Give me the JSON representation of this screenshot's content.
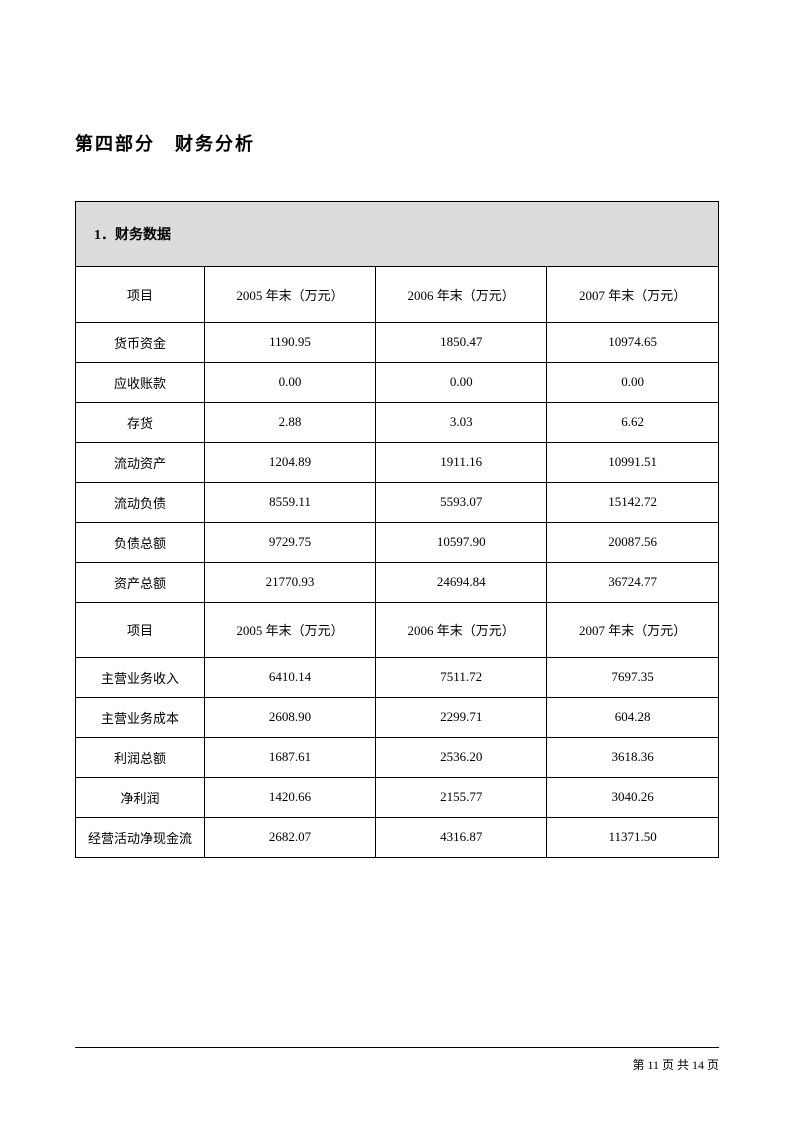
{
  "section_title": "第四部分　财务分析",
  "table_subtitle": "1．财务数据",
  "table": {
    "type": "table",
    "columns": [
      "项目",
      "2005 年末（万元）",
      "2006 年末（万元）",
      "2007 年末（万元）"
    ],
    "section1_header": [
      "项目",
      "2005 年末（万元）",
      "2006 年末（万元）",
      "2007 年末（万元）"
    ],
    "section1_rows": [
      [
        "货币资金",
        "1190.95",
        "1850.47",
        "10974.65"
      ],
      [
        "应收账款",
        "0.00",
        "0.00",
        "0.00"
      ],
      [
        "存货",
        "2.88",
        "3.03",
        "6.62"
      ],
      [
        "流动资产",
        "1204.89",
        "1911.16",
        "10991.51"
      ],
      [
        "流动负债",
        "8559.11",
        "5593.07",
        "15142.72"
      ],
      [
        "负债总额",
        "9729.75",
        "10597.90",
        "20087.56"
      ],
      [
        "资产总额",
        "21770.93",
        "24694.84",
        "36724.77"
      ]
    ],
    "section2_header": [
      "项目",
      "2005 年末（万元）",
      "2006 年末（万元）",
      "2007 年末（万元）"
    ],
    "section2_rows": [
      [
        "主营业务收入",
        "6410.14",
        "7511.72",
        "7697.35"
      ],
      [
        "主营业务成本",
        "2608.90",
        "2299.71",
        "604.28"
      ],
      [
        "利润总额",
        "1687.61",
        "2536.20",
        "3618.36"
      ],
      [
        "净利润",
        "1420.66",
        "2155.77",
        "3040.26"
      ],
      [
        "经营活动净现金流",
        "2682.07",
        "4316.87",
        "11371.50"
      ]
    ],
    "header_bg_color": "#dcdcdc",
    "border_color": "#000000",
    "text_color": "#000000",
    "background_color": "#ffffff",
    "title_fontsize": 18,
    "subtitle_fontsize": 14,
    "cell_fontsize": 13,
    "col_widths": [
      "20%",
      "26.66%",
      "26.66%",
      "26.66%"
    ],
    "header_row_height": 55,
    "data_row_height": 40
  },
  "footer": {
    "page_text": "第 11 页 共 14 页",
    "current_page": 11,
    "total_pages": 14
  }
}
